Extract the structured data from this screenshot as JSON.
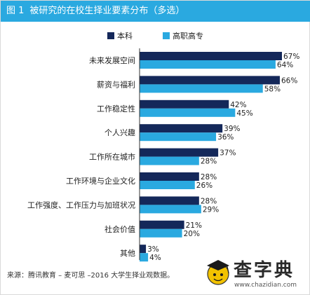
{
  "figure_number": "图 1",
  "figure_title": "被研究的在校生择业要素分布（多选）",
  "source": "来源：腾讯教育 – 麦可思 –2016 大学生择业观数据。",
  "watermark": {
    "text": "查字典",
    "url": "www.chazidian.com"
  },
  "colors": {
    "series1": "#14285a",
    "series2": "#2aa9e0",
    "title_bg": "#2aa9e0"
  },
  "chart_data": {
    "type": "bar",
    "orientation": "horizontal",
    "categories": [
      "未来发展空间",
      "薪资与福利",
      "工作稳定性",
      "个人兴趣",
      "工作所在城市",
      "工作环境与企业文化",
      "工作强度、工作压力与加班状况",
      "社会价值",
      "其他"
    ],
    "series": [
      {
        "name": "本科",
        "values": [
          67,
          66,
          42,
          39,
          37,
          28,
          28,
          21,
          3
        ],
        "labels": [
          "67%",
          "66%",
          "42%",
          "39%",
          "37%",
          "28%",
          "28%",
          "21%",
          "3%"
        ]
      },
      {
        "name": "高职高专",
        "values": [
          64,
          58,
          45,
          36,
          28,
          26,
          29,
          20,
          4
        ],
        "labels": [
          "64%",
          "58%",
          "45%",
          "36%",
          "28%",
          "26%",
          "29%",
          "20%",
          "4%"
        ]
      }
    ],
    "xlim": [
      0,
      67
    ],
    "grid": false,
    "legend_position": "top"
  }
}
